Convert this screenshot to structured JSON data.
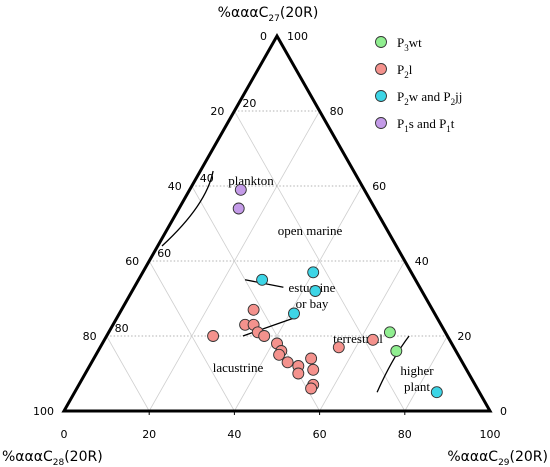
{
  "chart_data": {
    "type": "scatter",
    "subtype": "ternary",
    "axes": {
      "top": "%αααC27(20R)",
      "left": "%αααC28(20R)",
      "right": "%αααC29(20R)"
    },
    "ticks": [
      0,
      20,
      40,
      60,
      80,
      100
    ],
    "grid": true,
    "legend_position": "top-right",
    "series": [
      {
        "name": "P3wt",
        "name_parts": [
          [
            "P",
            ""
          ],
          [
            "3",
            "sub"
          ],
          [
            "wt",
            ""
          ]
        ],
        "color": "#90ee90",
        "points": [
          [
            21,
            13,
            66
          ],
          [
            16,
            14,
            70
          ]
        ]
      },
      {
        "name": "P2l",
        "name_parts": [
          [
            "P",
            ""
          ],
          [
            "2",
            "sub"
          ],
          [
            "l",
            ""
          ]
        ],
        "color": "#f4928d",
        "points": [
          [
            27,
            42,
            31
          ],
          [
            20,
            55,
            25
          ],
          [
            23,
            46,
            31
          ],
          [
            23,
            44,
            33
          ],
          [
            21,
            44,
            35
          ],
          [
            20,
            43,
            37
          ],
          [
            18,
            41,
            41
          ],
          [
            16,
            41,
            43
          ],
          [
            15,
            42,
            43
          ],
          [
            13,
            41,
            46
          ],
          [
            12,
            39,
            49
          ],
          [
            10,
            40,
            50
          ],
          [
            7,
            38,
            55
          ],
          [
            6,
            39,
            55
          ],
          [
            11,
            36,
            53
          ],
          [
            14,
            35,
            51
          ],
          [
            17,
            27,
            56
          ],
          [
            19,
            18,
            63
          ]
        ]
      },
      {
        "name": "P2w and P2jj",
        "name_parts": [
          [
            "P",
            ""
          ],
          [
            "2",
            "sub"
          ],
          [
            "w and P",
            ""
          ],
          [
            "2",
            "sub"
          ],
          [
            "jj",
            ""
          ]
        ],
        "color": "#3dd5e6",
        "points": [
          [
            37,
            23,
            40
          ],
          [
            32,
            25,
            43
          ],
          [
            26,
            33,
            41
          ],
          [
            35,
            36,
            29
          ],
          [
            5,
            10,
            85
          ]
        ]
      },
      {
        "name": "P1s and P1t",
        "name_parts": [
          [
            "P",
            ""
          ],
          [
            "1",
            "sub"
          ],
          [
            "s and P",
            ""
          ],
          [
            "1",
            "sub"
          ],
          [
            "t",
            ""
          ]
        ],
        "color": "#c49be8",
        "points": [
          [
            59,
            29,
            12
          ],
          [
            54,
            32,
            14
          ]
        ]
      }
    ],
    "annotations": [
      "plankton",
      "open marine",
      "estuarine",
      "or bay",
      "terrestrial",
      "lacustrine",
      "higher",
      "plant"
    ],
    "boundary_lines": [
      {
        "between": "plankton / open marine",
        "points": [
          [
            44,
            55,
            1
          ],
          [
            55,
            39,
            6
          ],
          [
            64,
            33,
            3
          ]
        ]
      },
      {
        "between": "open marine / estuarine",
        "points": [
          [
            35,
            40,
            25
          ],
          [
            33,
            32,
            35
          ]
        ]
      },
      {
        "between": "estuarine / terrestrial",
        "points": [
          [
            20,
            48,
            32
          ],
          [
            25,
            33,
            42
          ]
        ]
      },
      {
        "between": "terrestrial / higher plant",
        "points": [
          [
            5,
            24,
            71
          ],
          [
            14,
            16,
            70
          ],
          [
            20,
            9,
            71
          ]
        ]
      }
    ]
  }
}
